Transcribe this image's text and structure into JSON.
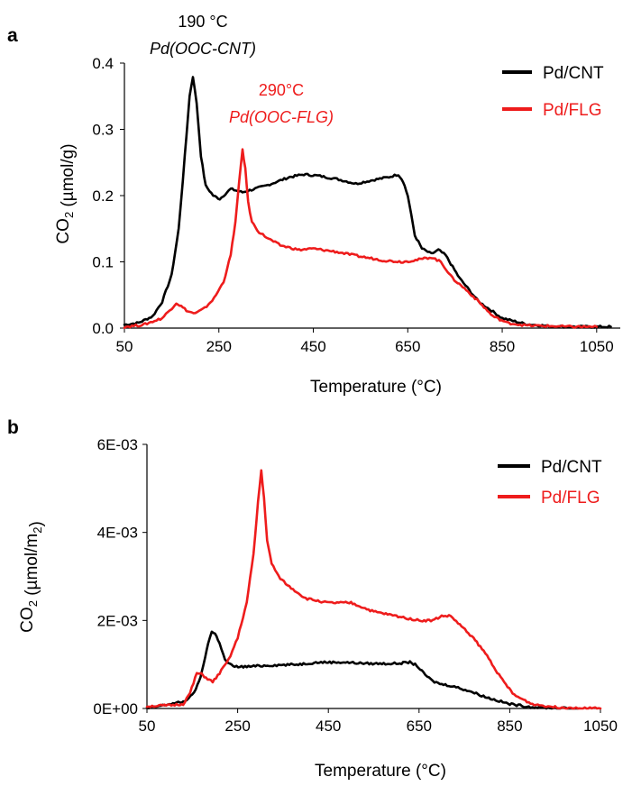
{
  "colors": {
    "pd_cnt": "#000000",
    "pd_flg": "#ee1c1c"
  },
  "chart_data": [
    {
      "panel_label": "a",
      "type": "line",
      "xlabel": "Temperature (°C)",
      "ylabel": "CO2 (µmol/g)",
      "xlim": [
        50,
        1100
      ],
      "ylim": [
        0,
        0.4
      ],
      "xticks": [
        50,
        250,
        450,
        650,
        850,
        1050
      ],
      "xtick_labels": [
        "50",
        "250",
        "450",
        "650",
        "850",
        "1050"
      ],
      "yticks": [
        0,
        0.1,
        0.2,
        0.3,
        0.4
      ],
      "ytick_labels": [
        "0.0",
        "0.1",
        "0.2",
        "0.3",
        "0.4"
      ],
      "legend_position": "top-right",
      "series": [
        {
          "name": "Pd/CNT",
          "color": "#000000",
          "x": [
            50,
            80,
            110,
            130,
            150,
            165,
            178,
            188,
            195,
            203,
            212,
            222,
            238,
            252,
            275,
            300,
            350,
            400,
            430,
            460,
            500,
            540,
            580,
            610,
            630,
            640,
            650,
            665,
            680,
            700,
            715,
            730,
            760,
            800,
            850,
            900,
            950,
            1000,
            1050,
            1080
          ],
          "y": [
            0.005,
            0.008,
            0.018,
            0.04,
            0.08,
            0.15,
            0.26,
            0.35,
            0.38,
            0.34,
            0.26,
            0.215,
            0.2,
            0.195,
            0.21,
            0.205,
            0.215,
            0.228,
            0.232,
            0.23,
            0.225,
            0.218,
            0.224,
            0.228,
            0.232,
            0.222,
            0.2,
            0.14,
            0.12,
            0.112,
            0.118,
            0.11,
            0.075,
            0.04,
            0.015,
            0.006,
            0.003,
            0.002,
            0.002,
            0.002
          ]
        },
        {
          "name": "Pd/FLG",
          "color": "#ee1c1c",
          "x": [
            50,
            90,
            130,
            150,
            160,
            170,
            185,
            200,
            220,
            240,
            260,
            275,
            285,
            293,
            300,
            306,
            312,
            320,
            335,
            355,
            380,
            420,
            450,
            500,
            550,
            600,
            640,
            670,
            700,
            720,
            745,
            770,
            800,
            830,
            860,
            900,
            950,
            1000,
            1050
          ],
          "y": [
            0.002,
            0.005,
            0.015,
            0.03,
            0.038,
            0.033,
            0.025,
            0.022,
            0.03,
            0.045,
            0.07,
            0.11,
            0.16,
            0.22,
            0.27,
            0.24,
            0.19,
            0.16,
            0.145,
            0.135,
            0.125,
            0.118,
            0.12,
            0.115,
            0.108,
            0.102,
            0.1,
            0.103,
            0.107,
            0.1,
            0.075,
            0.06,
            0.04,
            0.018,
            0.008,
            0.004,
            0.003,
            0.002,
            0.002
          ]
        }
      ],
      "annotations": [
        {
          "text": "190 °C",
          "style": "normal",
          "color": "#000000"
        },
        {
          "text": "Pd(OOC-CNT)",
          "style": "italic",
          "color": "#000000"
        },
        {
          "text": "290°C",
          "style": "normal",
          "color": "#ee1c1c"
        },
        {
          "text": "Pd(OOC-FLG)",
          "style": "italic",
          "color": "#ee1c1c"
        }
      ]
    },
    {
      "panel_label": "b",
      "type": "line",
      "xlabel": "Temperature (°C)",
      "ylabel": "CO2 (µmol/m2)",
      "xlim": [
        50,
        1050
      ],
      "ylim": [
        0,
        0.006
      ],
      "xticks": [
        50,
        250,
        450,
        650,
        850,
        1050
      ],
      "xtick_labels": [
        "50",
        "250",
        "450",
        "650",
        "850",
        "1050"
      ],
      "yticks": [
        0,
        0.002,
        0.004,
        0.006
      ],
      "ytick_labels": [
        "0E+00",
        "2E-03",
        "4E-03",
        "6E-03"
      ],
      "legend_position": "top-right",
      "series": [
        {
          "name": "Pd/CNT",
          "color": "#000000",
          "x": [
            50,
            100,
            130,
            150,
            165,
            175,
            185,
            193,
            200,
            210,
            222,
            240,
            270,
            320,
            380,
            430,
            480,
            540,
            600,
            630,
            645,
            660,
            680,
            700,
            720,
            760,
            800,
            850,
            900,
            950,
            1000
          ],
          "y": [
            0,
            0.0001,
            0.00015,
            0.0003,
            0.0006,
            0.001,
            0.0015,
            0.00174,
            0.0017,
            0.0015,
            0.0011,
            0.00095,
            0.00095,
            0.00098,
            0.001,
            0.00105,
            0.00105,
            0.00102,
            0.00102,
            0.00105,
            0.00098,
            0.0008,
            0.00062,
            0.00055,
            0.00052,
            0.0004,
            0.00025,
            0.0001,
            3e-05,
            1e-05,
            0
          ],
          "y_scale": 1
        },
        {
          "name": "Pd/FLG",
          "color": "#ee1c1c",
          "x": [
            50,
            100,
            130,
            145,
            160,
            170,
            180,
            195,
            210,
            230,
            250,
            270,
            285,
            295,
            302,
            308,
            315,
            325,
            340,
            360,
            400,
            450,
            500,
            550,
            600,
            650,
            680,
            700,
            720,
            740,
            770,
            800,
            830,
            860,
            900,
            950,
            1000,
            1050
          ],
          "y": [
            5e-05,
            7e-05,
            0.0001,
            0.00035,
            0.0008,
            0.00078,
            0.0007,
            0.0006,
            0.0008,
            0.0011,
            0.0016,
            0.0024,
            0.0035,
            0.0047,
            0.0054,
            0.0048,
            0.0038,
            0.0033,
            0.003,
            0.0028,
            0.0025,
            0.0024,
            0.0024,
            0.0022,
            0.0021,
            0.002,
            0.002,
            0.0021,
            0.0021,
            0.0019,
            0.0016,
            0.0012,
            0.0007,
            0.0003,
            0.0001,
            3e-05,
            1e-05,
            0
          ]
        }
      ],
      "annotations": []
    }
  ]
}
